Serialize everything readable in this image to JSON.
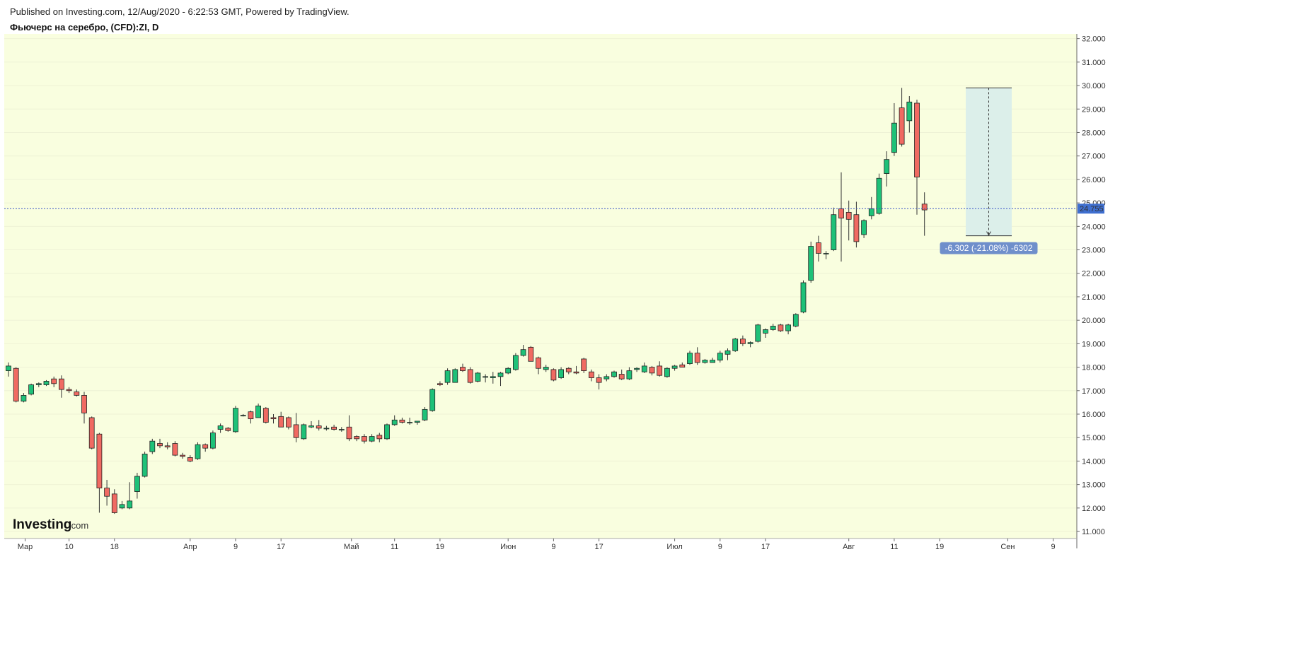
{
  "header": {
    "published": "Published on Investing.com, 12/Aug/2020 - 6:22:53 GMT, Powered by TradingView.",
    "symbol": "Фьючерс на серебро, (CFD):ZI, D"
  },
  "logo": {
    "main": "Investing",
    "suffix": ".com"
  },
  "colors": {
    "background": "#f9fedf",
    "up": "#1ec178",
    "down": "#f06a62",
    "wick": "#333333",
    "price_line": "#3a55c7",
    "price_label": "#3f6fd0",
    "measure_fill": "#dcefea",
    "measure_label": "#6f8fcb"
  },
  "chart_data": {
    "type": "candlestick",
    "ylim": [
      10.7,
      32.2
    ],
    "yticks": [
      "11.000",
      "12.000",
      "13.000",
      "14.000",
      "15.000",
      "16.000",
      "17.000",
      "18.000",
      "19.000",
      "20.000",
      "21.000",
      "22.000",
      "23.000",
      "24.000",
      "25.000",
      "26.000",
      "27.000",
      "28.000",
      "29.000",
      "30.000",
      "31.000",
      "32.000"
    ],
    "ytick_values": [
      11,
      12,
      13,
      14,
      15,
      16,
      17,
      18,
      19,
      20,
      21,
      22,
      23,
      24,
      25,
      26,
      27,
      28,
      29,
      30,
      31,
      32
    ],
    "xticks": [
      {
        "label": "Мар",
        "idx": 2.2
      },
      {
        "label": "10",
        "idx": 8
      },
      {
        "label": "18",
        "idx": 14
      },
      {
        "label": "Апр",
        "idx": 24
      },
      {
        "label": "9",
        "idx": 30
      },
      {
        "label": "17",
        "idx": 36
      },
      {
        "label": "Май",
        "idx": 45.3
      },
      {
        "label": "11",
        "idx": 51
      },
      {
        "label": "19",
        "idx": 57
      },
      {
        "label": "Июн",
        "idx": 66
      },
      {
        "label": "9",
        "idx": 72
      },
      {
        "label": "17",
        "idx": 78
      },
      {
        "label": "Июл",
        "idx": 88
      },
      {
        "label": "9",
        "idx": 94
      },
      {
        "label": "17",
        "idx": 100
      },
      {
        "label": "Авг",
        "idx": 111
      },
      {
        "label": "11",
        "idx": 117
      },
      {
        "label": "19",
        "idx": 123
      },
      {
        "label": "Сен",
        "idx": 132
      },
      {
        "label": "9",
        "idx": 138
      }
    ],
    "candles": [
      [
        17.85,
        18.2,
        17.6,
        18.05
      ],
      [
        17.95,
        18.0,
        16.5,
        16.55
      ],
      [
        16.55,
        16.9,
        16.5,
        16.8
      ],
      [
        16.85,
        17.3,
        16.8,
        17.25
      ],
      [
        17.25,
        17.35,
        17.15,
        17.3
      ],
      [
        17.25,
        17.45,
        17.2,
        17.4
      ],
      [
        17.5,
        17.6,
        17.15,
        17.3
      ],
      [
        17.5,
        17.65,
        16.7,
        17.05
      ],
      [
        17.05,
        17.15,
        16.9,
        17.0
      ],
      [
        16.95,
        17.05,
        16.75,
        16.8
      ],
      [
        16.8,
        16.95,
        15.6,
        16.05
      ],
      [
        15.85,
        15.9,
        14.5,
        14.55
      ],
      [
        15.15,
        15.2,
        11.8,
        12.85
      ],
      [
        12.85,
        13.2,
        12.1,
        12.5
      ],
      [
        12.6,
        12.8,
        11.75,
        11.8
      ],
      [
        12.0,
        12.3,
        11.95,
        12.15
      ],
      [
        12.0,
        13.1,
        11.95,
        12.3
      ],
      [
        12.7,
        13.5,
        12.4,
        13.35
      ],
      [
        13.35,
        14.4,
        13.3,
        14.3
      ],
      [
        14.4,
        14.95,
        14.3,
        14.85
      ],
      [
        14.75,
        14.95,
        14.55,
        14.65
      ],
      [
        14.65,
        14.8,
        14.5,
        14.6
      ],
      [
        14.75,
        14.85,
        14.2,
        14.25
      ],
      [
        14.25,
        14.35,
        14.1,
        14.2
      ],
      [
        14.15,
        14.25,
        13.95,
        14.0
      ],
      [
        14.1,
        14.8,
        14.05,
        14.7
      ],
      [
        14.7,
        14.75,
        14.4,
        14.55
      ],
      [
        14.55,
        15.3,
        14.5,
        15.2
      ],
      [
        15.35,
        15.6,
        15.2,
        15.5
      ],
      [
        15.4,
        15.45,
        15.25,
        15.3
      ],
      [
        15.25,
        16.35,
        15.2,
        16.25
      ],
      [
        15.95,
        16.0,
        15.9,
        15.95
      ],
      [
        16.1,
        16.15,
        15.6,
        15.8
      ],
      [
        15.85,
        16.45,
        15.85,
        16.35
      ],
      [
        16.25,
        16.3,
        15.6,
        15.65
      ],
      [
        15.85,
        16.0,
        15.6,
        15.8
      ],
      [
        15.9,
        16.1,
        15.5,
        15.45
      ],
      [
        15.85,
        15.9,
        15.35,
        15.45
      ],
      [
        15.55,
        16.05,
        14.8,
        15.0
      ],
      [
        14.95,
        15.6,
        14.9,
        15.55
      ],
      [
        15.45,
        15.7,
        15.4,
        15.5
      ],
      [
        15.5,
        15.75,
        15.3,
        15.4
      ],
      [
        15.4,
        15.5,
        15.3,
        15.4
      ],
      [
        15.45,
        15.55,
        15.3,
        15.35
      ],
      [
        15.35,
        15.45,
        15.25,
        15.35
      ],
      [
        15.45,
        15.95,
        14.85,
        14.95
      ],
      [
        15.05,
        15.1,
        14.85,
        14.95
      ],
      [
        15.05,
        15.15,
        14.75,
        14.85
      ],
      [
        14.85,
        15.15,
        14.8,
        15.05
      ],
      [
        15.1,
        15.2,
        14.8,
        14.95
      ],
      [
        14.95,
        15.6,
        14.9,
        15.55
      ],
      [
        15.55,
        15.95,
        15.5,
        15.75
      ],
      [
        15.75,
        15.85,
        15.6,
        15.65
      ],
      [
        15.65,
        15.85,
        15.55,
        15.65
      ],
      [
        15.65,
        15.7,
        15.55,
        15.7
      ],
      [
        15.75,
        16.3,
        15.7,
        16.2
      ],
      [
        16.15,
        17.1,
        16.1,
        17.05
      ],
      [
        17.3,
        17.4,
        17.2,
        17.25
      ],
      [
        17.35,
        17.95,
        17.25,
        17.85
      ],
      [
        17.35,
        17.95,
        17.35,
        17.9
      ],
      [
        18.0,
        18.15,
        17.8,
        17.85
      ],
      [
        17.9,
        18.0,
        17.3,
        17.35
      ],
      [
        17.4,
        17.8,
        17.35,
        17.75
      ],
      [
        17.6,
        17.7,
        17.35,
        17.6
      ],
      [
        17.55,
        17.8,
        17.3,
        17.6
      ],
      [
        17.6,
        17.8,
        17.2,
        17.75
      ],
      [
        17.75,
        18.0,
        17.7,
        17.95
      ],
      [
        17.9,
        18.6,
        17.85,
        18.5
      ],
      [
        18.5,
        18.95,
        18.45,
        18.75
      ],
      [
        18.85,
        18.9,
        18.25,
        18.25
      ],
      [
        18.4,
        18.45,
        17.7,
        17.95
      ],
      [
        17.9,
        18.1,
        17.8,
        18.0
      ],
      [
        17.9,
        17.95,
        17.4,
        17.45
      ],
      [
        17.55,
        18.0,
        17.5,
        17.9
      ],
      [
        17.95,
        18.0,
        17.7,
        17.8
      ],
      [
        17.8,
        18.05,
        17.7,
        17.75
      ],
      [
        18.35,
        18.4,
        17.75,
        17.85
      ],
      [
        17.8,
        17.9,
        17.4,
        17.55
      ],
      [
        17.55,
        17.7,
        17.05,
        17.35
      ],
      [
        17.5,
        17.7,
        17.4,
        17.6
      ],
      [
        17.6,
        17.85,
        17.55,
        17.8
      ],
      [
        17.7,
        17.9,
        17.45,
        17.5
      ],
      [
        17.5,
        18.0,
        17.45,
        17.85
      ],
      [
        17.9,
        18.0,
        17.8,
        17.95
      ],
      [
        17.8,
        18.2,
        17.75,
        18.05
      ],
      [
        18.0,
        18.05,
        17.65,
        17.75
      ],
      [
        18.05,
        18.25,
        17.6,
        17.65
      ],
      [
        17.6,
        18.0,
        17.55,
        17.95
      ],
      [
        17.95,
        18.1,
        17.85,
        18.05
      ],
      [
        18.1,
        18.2,
        18.0,
        18.0
      ],
      [
        18.15,
        18.7,
        18.1,
        18.6
      ],
      [
        18.6,
        18.85,
        18.1,
        18.2
      ],
      [
        18.2,
        18.35,
        18.15,
        18.3
      ],
      [
        18.2,
        18.4,
        18.2,
        18.3
      ],
      [
        18.3,
        18.7,
        18.2,
        18.6
      ],
      [
        18.55,
        18.8,
        18.3,
        18.7
      ],
      [
        18.7,
        19.25,
        18.65,
        19.2
      ],
      [
        19.2,
        19.35,
        18.9,
        19.0
      ],
      [
        19.0,
        19.1,
        18.85,
        19.05
      ],
      [
        19.1,
        19.85,
        19.05,
        19.8
      ],
      [
        19.45,
        19.65,
        19.25,
        19.6
      ],
      [
        19.6,
        19.85,
        19.55,
        19.75
      ],
      [
        19.8,
        19.85,
        19.5,
        19.55
      ],
      [
        19.55,
        19.85,
        19.4,
        19.8
      ],
      [
        19.75,
        20.3,
        19.7,
        20.25
      ],
      [
        20.35,
        21.7,
        20.3,
        21.6
      ],
      [
        21.7,
        23.35,
        21.6,
        23.15
      ],
      [
        23.3,
        23.6,
        22.5,
        22.85
      ],
      [
        22.85,
        22.95,
        22.6,
        22.85
      ],
      [
        23.0,
        24.8,
        22.95,
        24.5
      ],
      [
        24.75,
        26.3,
        22.5,
        24.35
      ],
      [
        24.6,
        25.1,
        23.4,
        24.3
      ],
      [
        24.5,
        25.05,
        23.1,
        23.35
      ],
      [
        23.65,
        24.3,
        23.5,
        24.25
      ],
      [
        24.45,
        25.25,
        24.3,
        24.75
      ],
      [
        24.55,
        26.25,
        24.5,
        26.05
      ],
      [
        26.25,
        27.2,
        25.7,
        26.85
      ],
      [
        27.15,
        29.25,
        27.0,
        28.4
      ],
      [
        29.05,
        29.9,
        27.4,
        27.5
      ],
      [
        28.5,
        29.55,
        28.0,
        29.3
      ],
      [
        29.25,
        29.4,
        24.5,
        26.1
      ],
      [
        24.95,
        25.45,
        23.6,
        24.7
      ]
    ],
    "current_price": 24.755,
    "current_price_label": "24.755",
    "measure": {
      "from_value": 29.9,
      "to_value": 23.6,
      "label": "-6.302 (-21.08%) -6302"
    }
  }
}
